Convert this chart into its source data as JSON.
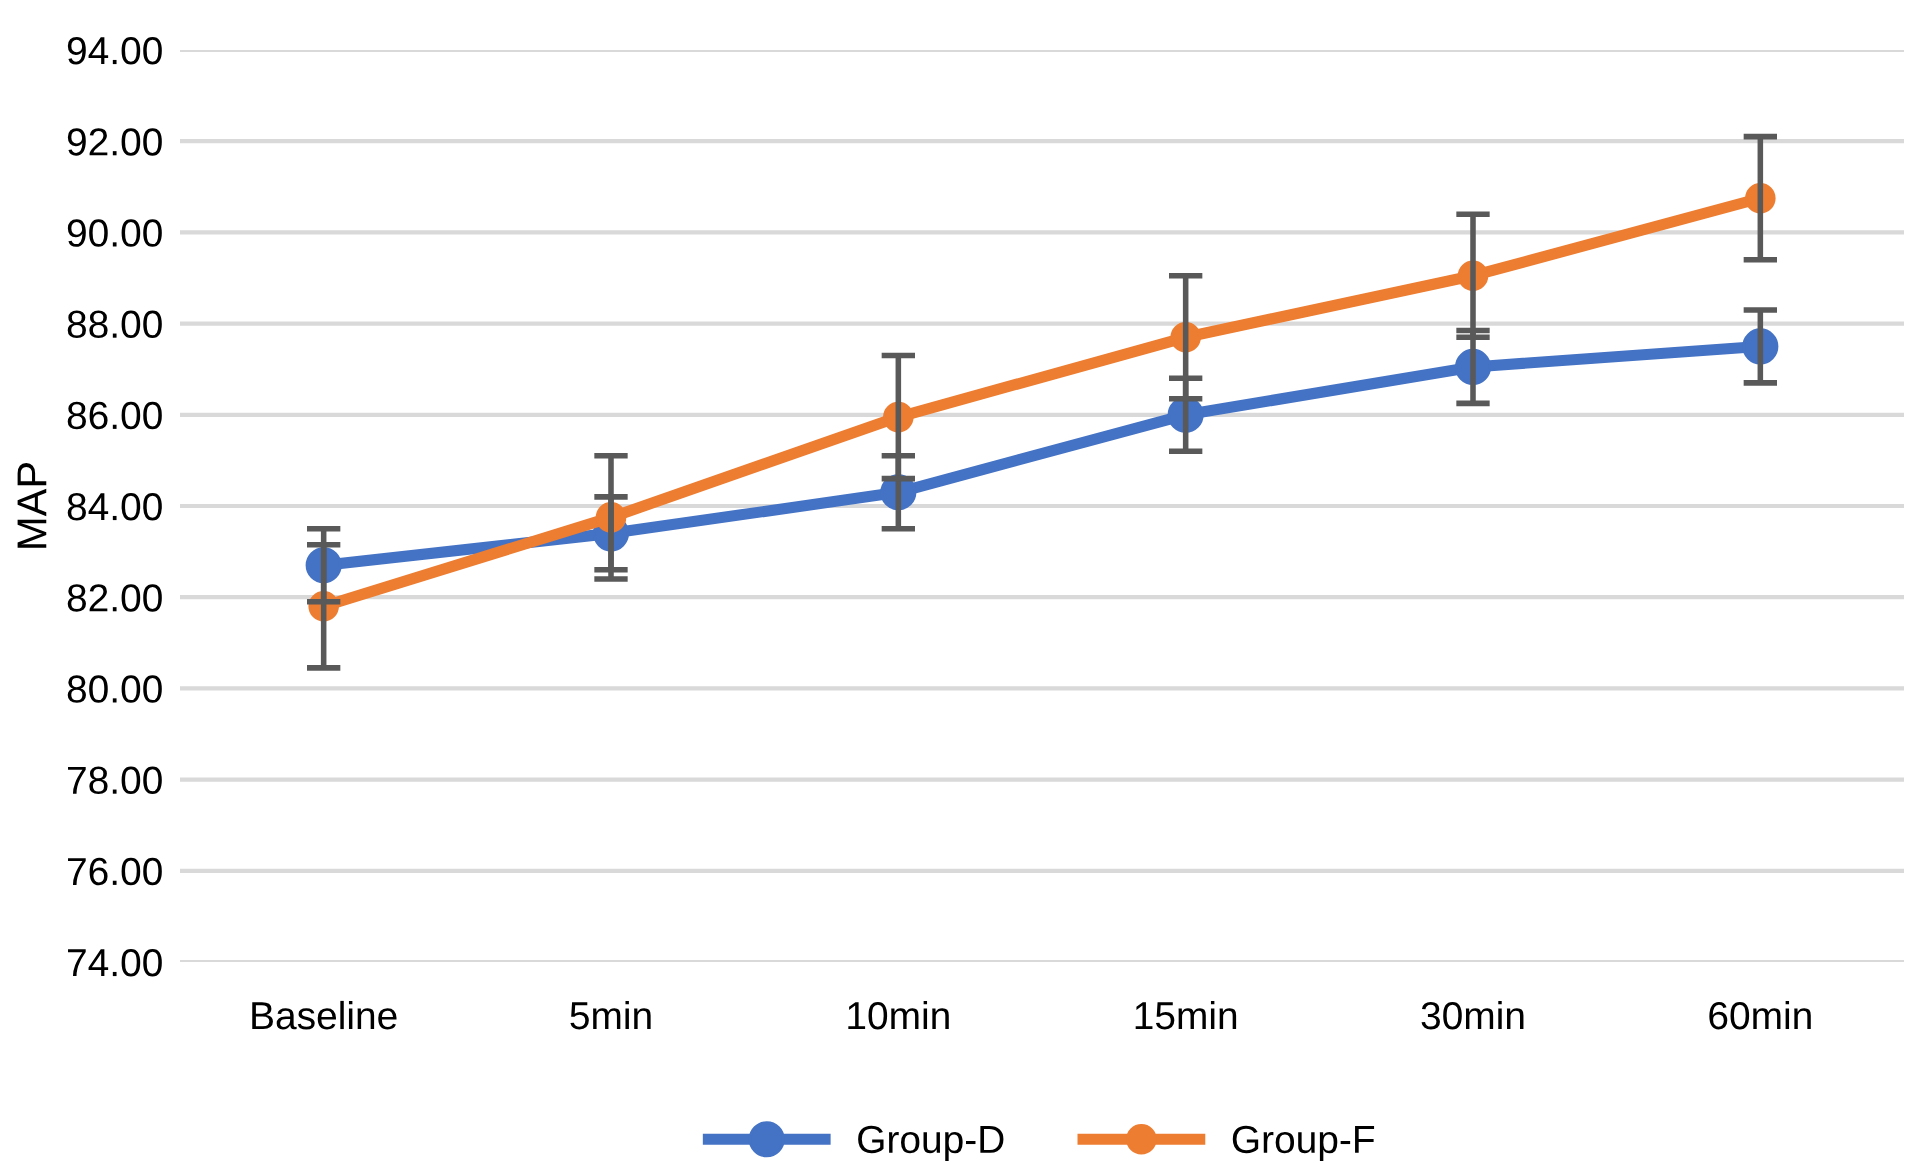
{
  "chart_data": {
    "type": "line",
    "ylabel": "MAP",
    "categories": [
      "Baseline",
      "5min",
      "10min",
      "15min",
      "30min",
      "60min"
    ],
    "series": [
      {
        "name": "Group-D",
        "color": "#4472c4",
        "values": [
          82.7,
          83.4,
          84.3,
          86.0,
          87.05,
          87.5
        ],
        "errors": [
          0.8,
          0.8,
          0.8,
          0.8,
          0.8,
          0.8
        ]
      },
      {
        "name": "Group-F",
        "color": "#ed7d31",
        "values": [
          81.8,
          83.75,
          85.95,
          87.7,
          89.05,
          90.75
        ],
        "errors": [
          1.35,
          1.35,
          1.35,
          1.35,
          1.35,
          1.35
        ]
      }
    ],
    "ylim": [
      74,
      94
    ],
    "yticks": [
      {
        "value": 74,
        "label": "74.00"
      },
      {
        "value": 76,
        "label": "76.00"
      },
      {
        "value": 78,
        "label": "78.00"
      },
      {
        "value": 80,
        "label": "80.00"
      },
      {
        "value": 82,
        "label": "82.00"
      },
      {
        "value": 84,
        "label": "84.00"
      },
      {
        "value": 86,
        "label": "86.00"
      },
      {
        "value": 88,
        "label": "88.00"
      },
      {
        "value": 90,
        "label": "90.00"
      },
      {
        "value": 92,
        "label": "92.00"
      },
      {
        "value": 94,
        "label": "94.00"
      }
    ],
    "grid": "y",
    "legend": "bottom",
    "marker": "circle",
    "line_style": "solid"
  }
}
